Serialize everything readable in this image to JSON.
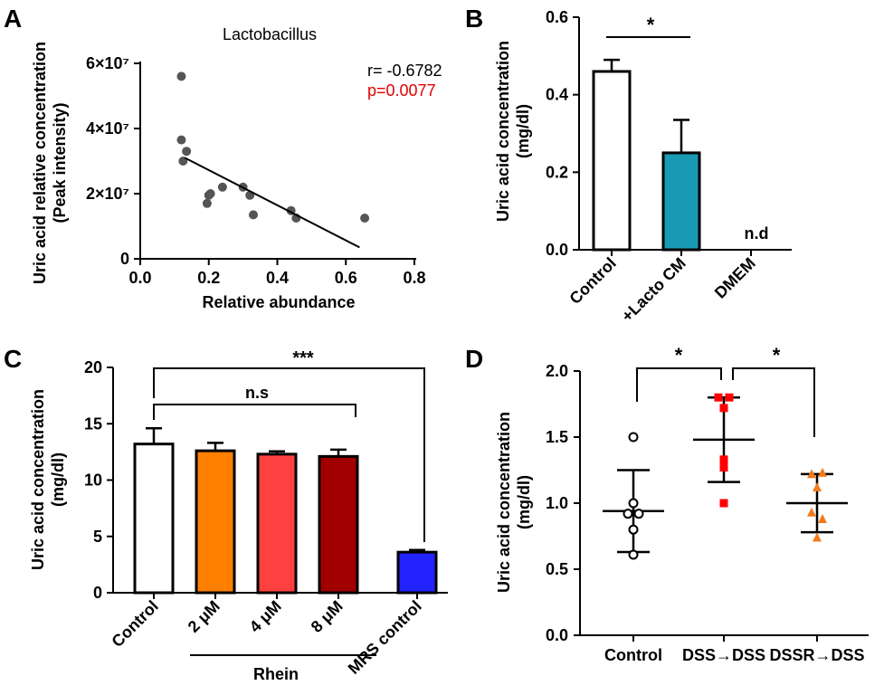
{
  "colors": {
    "control": "#ffffff",
    "lacto_cm": "#1a9bb5",
    "rhein_2": "#ff8000",
    "rhein_4": "#ff4040",
    "rhein_8": "#a00000",
    "mrs": "#2323ff",
    "pvalue": "#e00000",
    "scatter_point": "#555555",
    "square": "#ff0000",
    "triangle": "#f07b1e"
  },
  "chart_data": [
    {
      "id": "A",
      "panel_letter": "A",
      "type": "scatter",
      "title": "Lactobacillus",
      "xlabel": "Relative abundance",
      "ylabel": [
        "Uric acid relative concentration",
        "(Peak intensity)"
      ],
      "xlim": [
        0.0,
        0.8
      ],
      "ylim": [
        0,
        60000000
      ],
      "x_ticks": [
        "0.0",
        "0.2",
        "0.4",
        "0.6",
        "0.8"
      ],
      "y_ticks": [
        {
          "value": 0,
          "label": "0"
        },
        {
          "value": 20000000,
          "label": "2×10⁷"
        },
        {
          "value": 40000000,
          "label": "4×10⁷"
        },
        {
          "value": 60000000,
          "label": "6×10⁷"
        }
      ],
      "points": [
        [
          0.12,
          56000000
        ],
        [
          0.12,
          36500000
        ],
        [
          0.125,
          30000000
        ],
        [
          0.135,
          33000000
        ],
        [
          0.195,
          17000000
        ],
        [
          0.2,
          19500000
        ],
        [
          0.205,
          20000000
        ],
        [
          0.24,
          22000000
        ],
        [
          0.3,
          22000000
        ],
        [
          0.32,
          19500000
        ],
        [
          0.33,
          13500000
        ],
        [
          0.44,
          14800000
        ],
        [
          0.455,
          12500000
        ],
        [
          0.655,
          12500000
        ]
      ],
      "fit_line": [
        [
          0.13,
          31000000
        ],
        [
          0.64,
          3500000
        ]
      ],
      "stats": {
        "r": "r= -0.6782",
        "p": "p=0.0077"
      }
    },
    {
      "id": "B",
      "panel_letter": "B",
      "type": "bar",
      "ylabel": [
        "Uric acid concentration",
        "(mg/dl)"
      ],
      "ylim": [
        0,
        0.6
      ],
      "y_ticks": [
        "0.0",
        "0.2",
        "0.4",
        "0.6"
      ],
      "categories": [
        "Control",
        "+Lacto CM",
        "DMEM"
      ],
      "values": [
        0.46,
        0.25,
        null
      ],
      "errors": [
        0.03,
        0.085,
        null
      ],
      "colors": [
        "control",
        "lacto_cm",
        "control"
      ],
      "annotations": [
        {
          "type": "bracket",
          "from": 0,
          "to": 1,
          "label": "*"
        },
        {
          "type": "text",
          "at": 2,
          "label": "n.d"
        }
      ]
    },
    {
      "id": "C",
      "panel_letter": "C",
      "type": "bar",
      "ylabel": [
        "Uric acid concentration",
        "(mg/dl)"
      ],
      "ylim": [
        0,
        20
      ],
      "y_ticks": [
        "0",
        "5",
        "10",
        "15",
        "20"
      ],
      "categories": [
        "Control",
        "2 μM",
        "4 μM",
        "8 μM",
        "MRS control"
      ],
      "values": [
        13.2,
        12.6,
        12.3,
        12.1,
        3.6
      ],
      "errors": [
        1.4,
        0.7,
        0.25,
        0.6,
        0.2
      ],
      "colors": [
        "control",
        "rhein_2",
        "rhein_4",
        "rhein_8",
        "mrs"
      ],
      "group_label": "Rhein",
      "annotations": [
        {
          "type": "bracket",
          "from": 0,
          "to": 4,
          "label": "***"
        },
        {
          "type": "bracket",
          "from": 0,
          "to": 3,
          "label": "n.s"
        }
      ]
    },
    {
      "id": "D",
      "panel_letter": "D",
      "type": "scatter",
      "ylabel": [
        "Uric acid concentration",
        "(mg/dl)"
      ],
      "ylim": [
        0,
        2.0
      ],
      "y_ticks": [
        "0.0",
        "0.5",
        "1.0",
        "1.5",
        "2.0"
      ],
      "categories": [
        "Control",
        "DSS→DSS",
        "DSSR→DSS"
      ],
      "groups": [
        {
          "marker": "circle",
          "mean": 0.94,
          "sd": 0.31,
          "points": [
            [
              0,
              1.5
            ],
            [
              0,
              1.0
            ],
            [
              -0.1,
              0.92
            ],
            [
              0.1,
              0.92
            ],
            [
              0,
              0.8
            ],
            [
              0,
              0.61
            ]
          ]
        },
        {
          "marker": "square",
          "mean": 1.48,
          "sd": 0.32,
          "points": [
            [
              -0.1,
              1.8
            ],
            [
              0.1,
              1.8
            ],
            [
              0,
              1.72
            ],
            [
              0,
              1.33
            ],
            [
              0,
              1.27
            ],
            [
              0,
              1.0
            ]
          ]
        },
        {
          "marker": "triangle",
          "mean": 1.0,
          "sd": 0.22,
          "points": [
            [
              -0.1,
              1.22
            ],
            [
              0.1,
              1.23
            ],
            [
              0,
              1.12
            ],
            [
              -0.1,
              0.93
            ],
            [
              0.1,
              0.88
            ],
            [
              0,
              0.74
            ]
          ]
        }
      ],
      "annotations": [
        {
          "type": "bracket",
          "from": 0,
          "to": 1,
          "label": "*"
        },
        {
          "type": "bracket",
          "from": 1,
          "to": 2,
          "label": "*"
        }
      ]
    }
  ]
}
